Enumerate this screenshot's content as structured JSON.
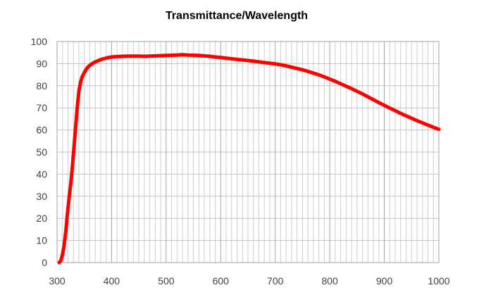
{
  "title": "Transmittance/Wavelength",
  "colors": {
    "background": "#ffffff",
    "title_text": "#000000",
    "axis_text": "#3f3f46",
    "grid_minor": "#cdcdcd",
    "grid_major": "#a3a3a3",
    "grid_horizontal": "#c4c4c4",
    "plot_border": "#a3a3a3",
    "curve": "#ff0000"
  },
  "chart_data": {
    "type": "line",
    "title": "Transmittance/Wavelength",
    "xlabel": "",
    "ylabel": "",
    "xlim": [
      300,
      1000
    ],
    "ylim": [
      0,
      100
    ],
    "x_tick_step": 100,
    "x_minor_grid_step": 10,
    "y_tick_step": 10,
    "x_ticks": [
      300,
      400,
      500,
      600,
      700,
      800,
      900,
      1000
    ],
    "y_ticks": [
      0,
      10,
      20,
      30,
      40,
      50,
      60,
      70,
      80,
      90,
      100
    ],
    "grid": "on",
    "legend": "none",
    "series": [
      {
        "name": "Transmittance",
        "color": "#ff0000",
        "line_width": 5,
        "points": [
          [
            304,
            0
          ],
          [
            307,
            1
          ],
          [
            310,
            3.5
          ],
          [
            313,
            8
          ],
          [
            316,
            14
          ],
          [
            319,
            22
          ],
          [
            322,
            29
          ],
          [
            325,
            35.5
          ],
          [
            328,
            43
          ],
          [
            331,
            52
          ],
          [
            334,
            61
          ],
          [
            337,
            70
          ],
          [
            340,
            77.5
          ],
          [
            343,
            81.5
          ],
          [
            346,
            84
          ],
          [
            350,
            86
          ],
          [
            355,
            88
          ],
          [
            360,
            89.2
          ],
          [
            365,
            90.1
          ],
          [
            370,
            90.8
          ],
          [
            375,
            91.3
          ],
          [
            380,
            91.8
          ],
          [
            385,
            92.2
          ],
          [
            390,
            92.5
          ],
          [
            395,
            92.8
          ],
          [
            400,
            93
          ],
          [
            410,
            93.2
          ],
          [
            420,
            93.3
          ],
          [
            430,
            93.4
          ],
          [
            440,
            93.4
          ],
          [
            450,
            93.4
          ],
          [
            460,
            93.3
          ],
          [
            470,
            93.4
          ],
          [
            480,
            93.5
          ],
          [
            490,
            93.6
          ],
          [
            500,
            93.7
          ],
          [
            510,
            93.8
          ],
          [
            520,
            93.9
          ],
          [
            530,
            94
          ],
          [
            540,
            93.9
          ],
          [
            550,
            93.8
          ],
          [
            560,
            93.7
          ],
          [
            570,
            93.5
          ],
          [
            580,
            93.3
          ],
          [
            590,
            93
          ],
          [
            600,
            92.8
          ],
          [
            610,
            92.5
          ],
          [
            620,
            92.2
          ],
          [
            630,
            91.9
          ],
          [
            640,
            91.7
          ],
          [
            650,
            91.4
          ],
          [
            660,
            91.1
          ],
          [
            670,
            90.8
          ],
          [
            680,
            90.5
          ],
          [
            690,
            90.2
          ],
          [
            700,
            89.9
          ],
          [
            710,
            89.5
          ],
          [
            720,
            89
          ],
          [
            730,
            88.4
          ],
          [
            740,
            87.8
          ],
          [
            750,
            87.2
          ],
          [
            760,
            86.5
          ],
          [
            770,
            85.7
          ],
          [
            780,
            84.9
          ],
          [
            790,
            84
          ],
          [
            800,
            83
          ],
          [
            810,
            82
          ],
          [
            820,
            80.9
          ],
          [
            830,
            79.8
          ],
          [
            840,
            78.7
          ],
          [
            850,
            77.5
          ],
          [
            860,
            76.3
          ],
          [
            870,
            75
          ],
          [
            880,
            73.7
          ],
          [
            890,
            72.4
          ],
          [
            900,
            71.1
          ],
          [
            910,
            69.9
          ],
          [
            920,
            68.7
          ],
          [
            930,
            67.5
          ],
          [
            940,
            66.4
          ],
          [
            950,
            65.3
          ],
          [
            960,
            64.2
          ],
          [
            970,
            63.2
          ],
          [
            980,
            62.2
          ],
          [
            990,
            61.2
          ],
          [
            1000,
            60.3
          ]
        ]
      }
    ]
  }
}
